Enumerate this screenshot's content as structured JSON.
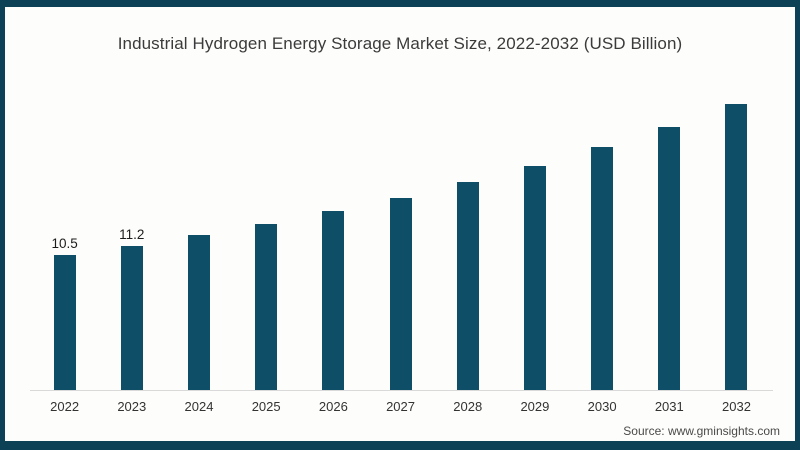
{
  "frame": {
    "border_color": "#0d4156",
    "background_color": "#fdfdfb"
  },
  "chart_data": {
    "type": "bar",
    "title": "Industrial Hydrogen Energy Storage Market Size, 2022-2032 (USD Billion)",
    "categories": [
      "2022",
      "2023",
      "2024",
      "2025",
      "2026",
      "2027",
      "2028",
      "2029",
      "2030",
      "2031",
      "2032"
    ],
    "values": [
      10.5,
      11.2,
      12.0,
      12.9,
      13.9,
      14.9,
      16.1,
      17.4,
      18.8,
      20.4,
      22.2
    ],
    "data_labels": [
      "10.5",
      "11.2",
      "",
      "",
      "",
      "",
      "",
      "",
      "",
      "",
      ""
    ],
    "bar_color": "#0e4e66",
    "axis_line_color": "#d9d9d9",
    "xlabel": "",
    "ylabel": "",
    "ylim": [
      0,
      24
    ],
    "grid": false,
    "legend_position": "none"
  },
  "source_note": "Source: www.gminsights.com"
}
